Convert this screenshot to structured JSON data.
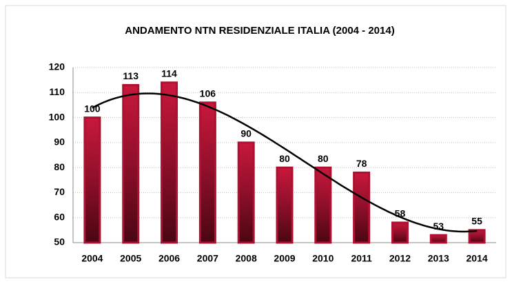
{
  "chart_data": {
    "type": "bar",
    "title": "ANDAMENTO NTN RESIDENZIALE ITALIA (2004 - 2014)",
    "categories": [
      "2004",
      "2005",
      "2006",
      "2007",
      "2008",
      "2009",
      "2010",
      "2011",
      "2012",
      "2013",
      "2014"
    ],
    "values": [
      100,
      113,
      114,
      106,
      90,
      80,
      80,
      78,
      58,
      53,
      55
    ],
    "color": "#b01030",
    "label_color": "#993366",
    "ylim": [
      50,
      120
    ],
    "yticks": [
      50,
      60,
      70,
      80,
      90,
      100,
      110,
      120
    ],
    "grid": true,
    "trendline": {
      "type": "polynomial",
      "order": 3,
      "color": "#000000"
    }
  }
}
